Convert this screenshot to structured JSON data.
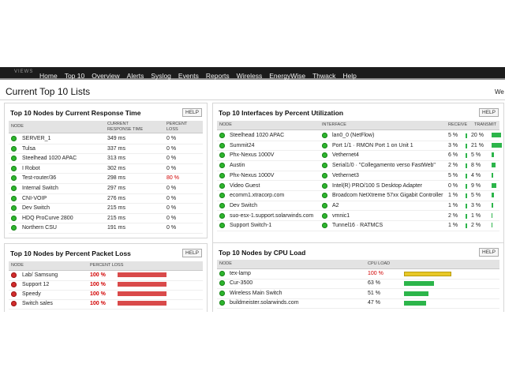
{
  "nav": {
    "views_label": "VIEWS",
    "items": [
      "Home",
      "Top 10",
      "Overview",
      "Alerts",
      "Syslog",
      "Events",
      "Reports",
      "Wireless",
      "EnergyWise",
      "Thwack",
      "Help"
    ]
  },
  "page": {
    "title": "Current Top 10 Lists",
    "welcome": "We"
  },
  "response_time": {
    "title": "Top 10 Nodes by Current Response Time",
    "help": "HELP",
    "headers": {
      "node": "NODE",
      "response": "CURRENT RESPONSE TIME",
      "loss": "PERCENT LOSS"
    },
    "rows": [
      {
        "node": "SERVER_1",
        "response": "349 ms",
        "loss": "0 %",
        "status": "up"
      },
      {
        "node": "Tulsa",
        "response": "337 ms",
        "loss": "0 %",
        "status": "up"
      },
      {
        "node": "Steelhead 1020 APAC",
        "response": "313 ms",
        "loss": "0 %",
        "status": "up"
      },
      {
        "node": "I Robot",
        "response": "302 ms",
        "loss": "0 %",
        "status": "up"
      },
      {
        "node": "Test-router/36",
        "response": "298 ms",
        "loss": "80 %",
        "status": "up"
      },
      {
        "node": "Internal Switch",
        "response": "297 ms",
        "loss": "0 %",
        "status": "up"
      },
      {
        "node": "CNI-VOIP",
        "response": "276 ms",
        "loss": "0 %",
        "status": "up"
      },
      {
        "node": "Dev Switch",
        "response": "215 ms",
        "loss": "0 %",
        "status": "up"
      },
      {
        "node": "HDQ ProCurve 2800",
        "response": "215 ms",
        "loss": "0 %",
        "status": "up"
      },
      {
        "node": "Northern CSU",
        "response": "191 ms",
        "loss": "0 %",
        "status": "up"
      }
    ]
  },
  "interfaces": {
    "title": "Top 10 Interfaces by Percent Utilization",
    "help": "HELP",
    "headers": {
      "node": "NODE",
      "interface": "INTERFACE",
      "receive": "RECEIVE",
      "transmit": "TRANSMIT"
    },
    "rows": [
      {
        "node": "Steelhead 1020 APAC",
        "interface": "lan0_0 (NetFlow)",
        "receive": "5 %",
        "receive_pct": 5,
        "transmit": "20 %",
        "transmit_pct": 20
      },
      {
        "node": "Summit24",
        "interface": "Port 1/1 · RMON Port 1 on Unit 1",
        "receive": "3 %",
        "receive_pct": 3,
        "transmit": "21 %",
        "transmit_pct": 21
      },
      {
        "node": "Phx-Nexus 1000V",
        "interface": "Vethernet4",
        "receive": "6 %",
        "receive_pct": 6,
        "transmit": "5 %",
        "transmit_pct": 5
      },
      {
        "node": "Austin",
        "interface": "Serial1/0 · \"Collegamento verso FastWeb\"",
        "receive": "2 %",
        "receive_pct": 2,
        "transmit": "8 %",
        "transmit_pct": 8
      },
      {
        "node": "Phx-Nexus 1000V",
        "interface": "Vethernet3",
        "receive": "5 %",
        "receive_pct": 5,
        "transmit": "4 %",
        "transmit_pct": 4
      },
      {
        "node": "Video Guest",
        "interface": "Intel(R) PRO/100 S Desktop Adapter",
        "receive": "0 %",
        "receive_pct": 0,
        "transmit": "9 %",
        "transmit_pct": 9
      },
      {
        "node": "ecomm1.xtracorp.com",
        "interface": "Broadcom NetXtreme 57xx Gigabit Controller",
        "receive": "1 %",
        "receive_pct": 1,
        "transmit": "5 %",
        "transmit_pct": 5
      },
      {
        "node": "Dev Switch",
        "interface": "A2",
        "receive": "1 %",
        "receive_pct": 1,
        "transmit": "3 %",
        "transmit_pct": 3
      },
      {
        "node": "suo-esx-1.support.solarwinds.com",
        "interface": "vmnic1",
        "receive": "2 %",
        "receive_pct": 2,
        "transmit": "1 %",
        "transmit_pct": 1
      },
      {
        "node": "Support Switch-1",
        "interface": "Tunnel16 · RATMCS",
        "receive": "1 %",
        "receive_pct": 1,
        "transmit": "2 %",
        "transmit_pct": 2
      }
    ]
  },
  "packet_loss": {
    "title": "Top 10 Nodes by Percent Packet Loss",
    "help": "HELP",
    "headers": {
      "node": "NODE",
      "loss": "PERCENT LOSS"
    },
    "rows": [
      {
        "node": "Lab/ Samsung",
        "loss": "100 %",
        "pct": 100
      },
      {
        "node": "Support 12",
        "loss": "100 %",
        "pct": 100
      },
      {
        "node": "Speedy",
        "loss": "100 %",
        "pct": 100
      },
      {
        "node": "Switch sales",
        "loss": "100 %",
        "pct": 100
      }
    ]
  },
  "cpu_load": {
    "title": "Top 10 Nodes by CPU Load",
    "help": "HELP",
    "headers": {
      "node": "NODE",
      "cpu": "CPU LOAD"
    },
    "rows": [
      {
        "node": "tex-lamp",
        "cpu": "100 %",
        "pct": 100,
        "level": "high"
      },
      {
        "node": "Cur-3500",
        "cpu": "63 %",
        "pct": 63,
        "level": "normal"
      },
      {
        "node": "Wireless Main Switch",
        "cpu": "51 %",
        "pct": 51,
        "level": "normal"
      },
      {
        "node": "buildmeister.solarwinds.com",
        "cpu": "47 %",
        "pct": 47,
        "level": "normal"
      }
    ]
  },
  "colors": {
    "up": "#2db52d",
    "down": "#d22c2c",
    "high_text": "#d10000",
    "bar_green": "#2cb54a",
    "bar_yellow": "#e8c826",
    "bar_red": "#d94a4a"
  }
}
